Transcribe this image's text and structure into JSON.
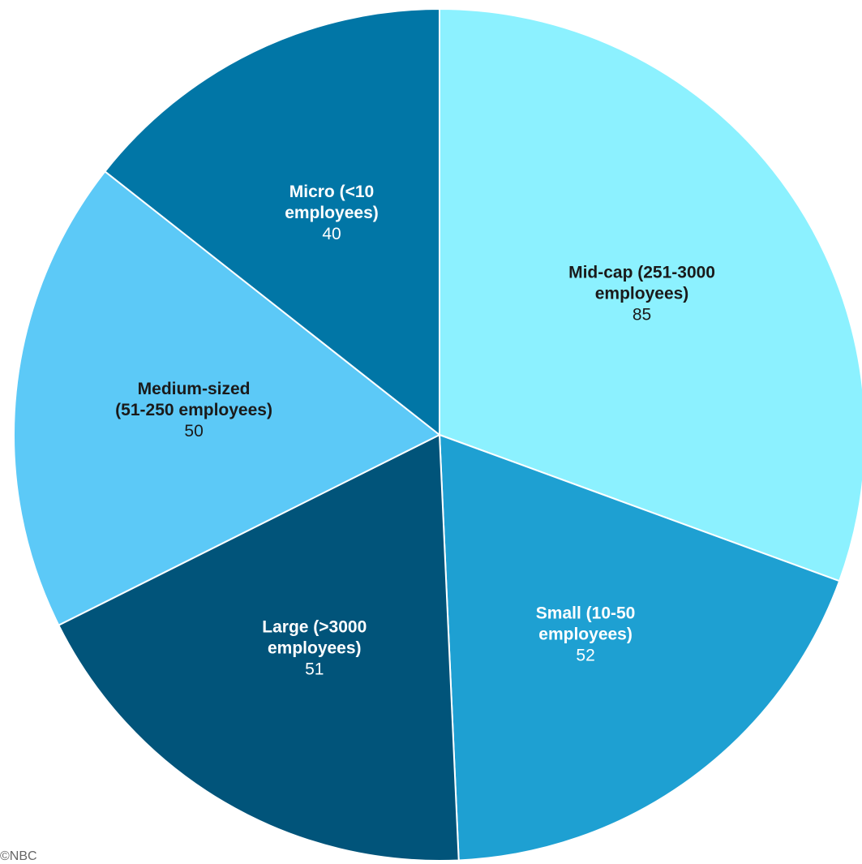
{
  "chart_data": {
    "type": "pie",
    "start_angle_deg": 0,
    "slices": [
      {
        "label_lines": [
          "Mid-cap (251-3000",
          "employees)"
        ],
        "value": 85,
        "color": "#8cf1ff",
        "text_color": "#1a1a1a"
      },
      {
        "label_lines": [
          "Small (10-50",
          "employees)"
        ],
        "value": 52,
        "color": "#1ea0d2",
        "text_color": "#ffffff"
      },
      {
        "label_lines": [
          "Large (>3000",
          "employees)"
        ],
        "value": 51,
        "color": "#01547a",
        "text_color": "#ffffff"
      },
      {
        "label_lines": [
          "Medium-sized",
          "(51-250 employees)"
        ],
        "value": 50,
        "color": "#5cc9f7",
        "text_color": "#1a1a1a"
      },
      {
        "label_lines": [
          "Micro (<10",
          "employees)"
        ],
        "value": 40,
        "color": "#0176a6",
        "text_color": "#ffffff"
      }
    ]
  },
  "source_note": "©NBC"
}
